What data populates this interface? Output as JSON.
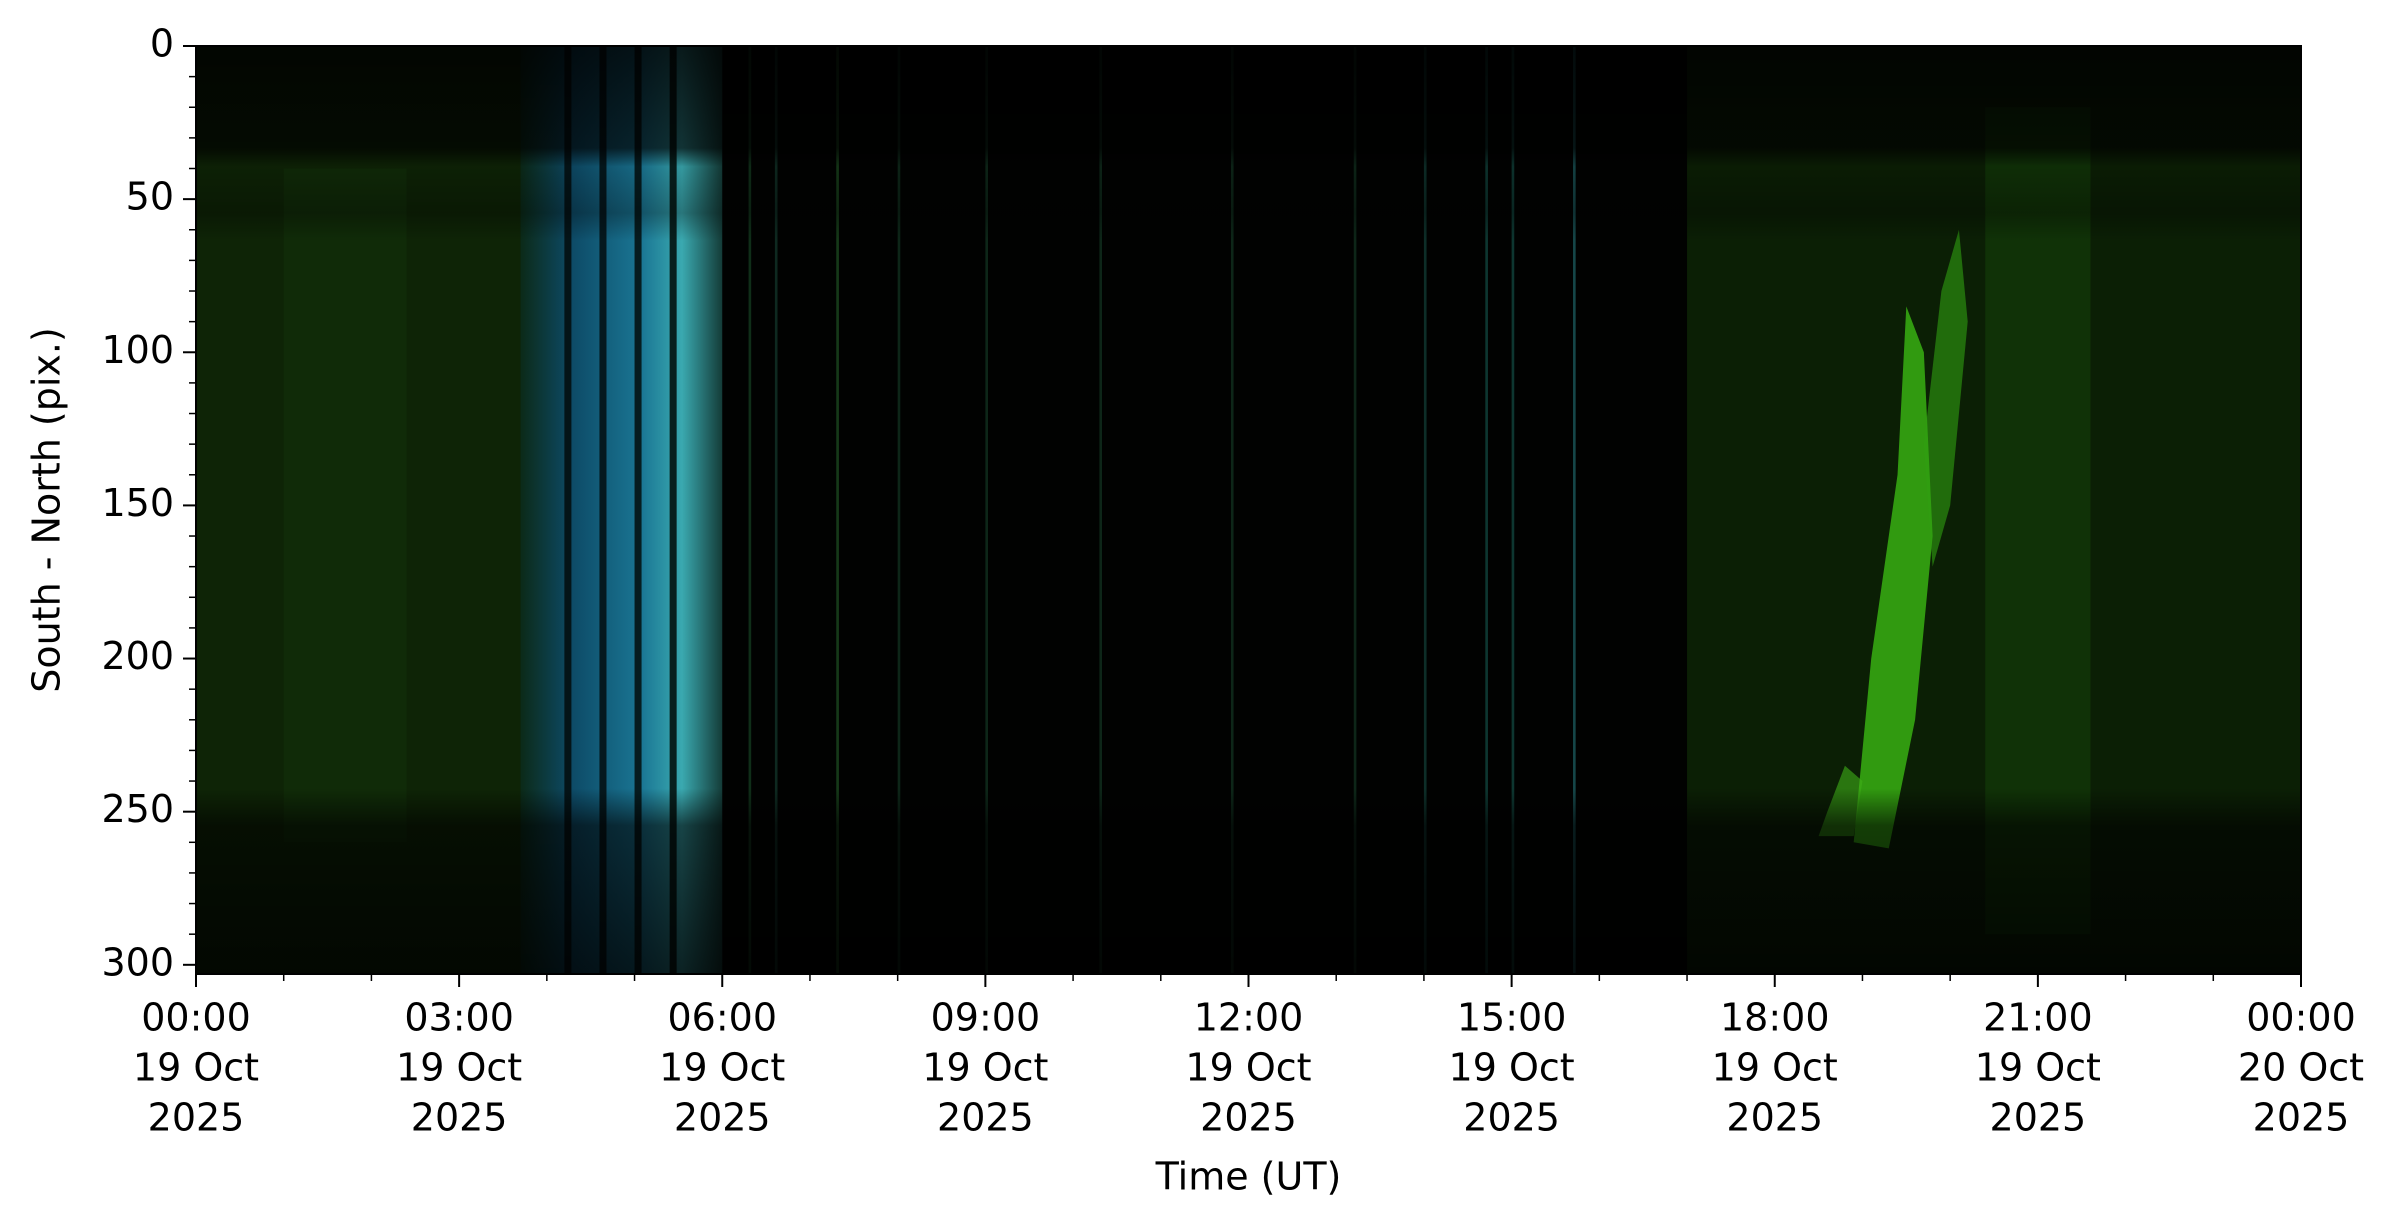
{
  "chart_data": {
    "type": "heatmap",
    "xlabel": "Time (UT)",
    "ylabel": "South - North (pix.)",
    "xlim": [
      0,
      24
    ],
    "xticks": [
      {
        "value": 0,
        "label": [
          "00:00",
          "19 Oct",
          "2025"
        ]
      },
      {
        "value": 3,
        "label": [
          "03:00",
          "19 Oct",
          "2025"
        ]
      },
      {
        "value": 6,
        "label": [
          "06:00",
          "19 Oct",
          "2025"
        ]
      },
      {
        "value": 9,
        "label": [
          "09:00",
          "19 Oct",
          "2025"
        ]
      },
      {
        "value": 12,
        "label": [
          "12:00",
          "19 Oct",
          "2025"
        ]
      },
      {
        "value": 15,
        "label": [
          "15:00",
          "19 Oct",
          "2025"
        ]
      },
      {
        "value": 18,
        "label": [
          "18:00",
          "19 Oct",
          "2025"
        ]
      },
      {
        "value": 21,
        "label": [
          "21:00",
          "19 Oct",
          "2025"
        ]
      },
      {
        "value": 24,
        "label": [
          "00:00",
          "20 Oct",
          "2025"
        ]
      }
    ],
    "xminorticks": [
      1,
      2,
      4,
      5,
      7,
      8,
      10,
      11,
      13,
      14,
      16,
      17,
      19,
      20,
      22,
      23
    ],
    "ylim": [
      0,
      303
    ],
    "yinverted": true,
    "yticks": [
      0,
      50,
      100,
      150,
      200,
      250,
      300
    ],
    "yminorticks": [
      10,
      20,
      30,
      40,
      60,
      70,
      80,
      90,
      110,
      120,
      130,
      140,
      160,
      170,
      180,
      190,
      210,
      220,
      230,
      240,
      260,
      270,
      280,
      290
    ]
  }
}
